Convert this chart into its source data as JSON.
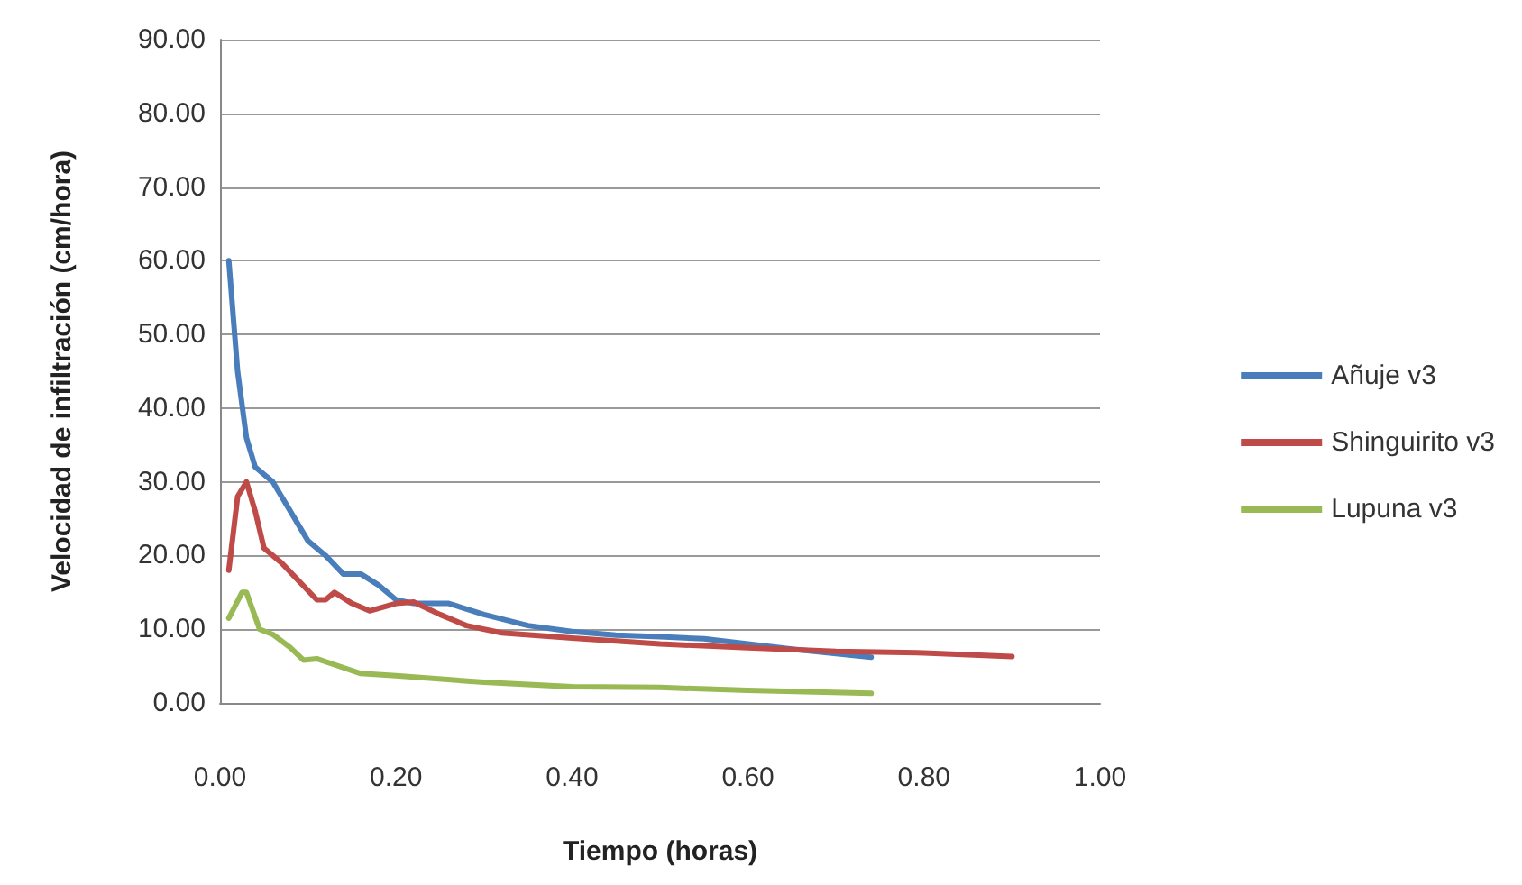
{
  "chart_data": {
    "type": "line",
    "xlabel": "Tiempo (horas)",
    "ylabel": "Velocidad de infiltración (cm/hora)",
    "xlim": [
      0,
      1
    ],
    "xticks": [
      {
        "value": 0,
        "label": "0.00"
      },
      {
        "value": 0.2,
        "label": "0.20"
      },
      {
        "value": 0.4,
        "label": "0.40"
      },
      {
        "value": 0.6,
        "label": "0.60"
      },
      {
        "value": 0.8,
        "label": "0.80"
      },
      {
        "value": 1,
        "label": "1.00"
      }
    ],
    "ylim": [
      0,
      90
    ],
    "yticks": [
      {
        "value": 0,
        "label": "0.00"
      },
      {
        "value": 10,
        "label": "10.00"
      },
      {
        "value": 20,
        "label": "20.00"
      },
      {
        "value": 30,
        "label": "30.00"
      },
      {
        "value": 40,
        "label": "40.00"
      },
      {
        "value": 50,
        "label": "50.00"
      },
      {
        "value": 60,
        "label": "60.00"
      },
      {
        "value": 70,
        "label": "70.00"
      },
      {
        "value": 80,
        "label": "80.00"
      },
      {
        "value": 90,
        "label": "90.00"
      }
    ],
    "grid": "y",
    "legend": "right",
    "marker": "none",
    "line_style": "solid",
    "series": [
      {
        "name": "Añuje v3",
        "color": "#4a7ebb",
        "x": [
          0.01,
          0.02,
          0.03,
          0.04,
          0.06,
          0.08,
          0.1,
          0.12,
          0.14,
          0.16,
          0.18,
          0.2,
          0.22,
          0.26,
          0.3,
          0.35,
          0.4,
          0.45,
          0.5,
          0.55,
          0.6,
          0.65,
          0.7,
          0.74
        ],
        "values": [
          60,
          45,
          36,
          32,
          30,
          26,
          22,
          20,
          17.5,
          17.5,
          16,
          14,
          13.5,
          13.5,
          12,
          10.5,
          9.7,
          9.2,
          9,
          8.7,
          8,
          7.3,
          6.7,
          6.2
        ]
      },
      {
        "name": "Shinguirito v3",
        "color": "#be4b48",
        "x": [
          0.01,
          0.02,
          0.03,
          0.04,
          0.05,
          0.07,
          0.09,
          0.11,
          0.12,
          0.13,
          0.15,
          0.17,
          0.2,
          0.22,
          0.25,
          0.28,
          0.32,
          0.4,
          0.5,
          0.6,
          0.7,
          0.8,
          0.9
        ],
        "values": [
          18,
          28,
          30,
          26,
          21,
          19,
          16.5,
          14,
          14,
          15,
          13.5,
          12.5,
          13.5,
          13.7,
          12,
          10.5,
          9.5,
          8.8,
          8,
          7.5,
          7,
          6.8,
          6.3
        ]
      },
      {
        "name": "Lupuna v3",
        "color": "#98b954",
        "x": [
          0.01,
          0.025,
          0.03,
          0.045,
          0.06,
          0.08,
          0.095,
          0.11,
          0.13,
          0.16,
          0.2,
          0.3,
          0.4,
          0.5,
          0.6,
          0.74
        ],
        "values": [
          11.5,
          15,
          15,
          10,
          9.3,
          7.5,
          5.8,
          6,
          5.2,
          4,
          3.7,
          2.8,
          2.2,
          2.1,
          1.7,
          1.3
        ]
      }
    ]
  }
}
